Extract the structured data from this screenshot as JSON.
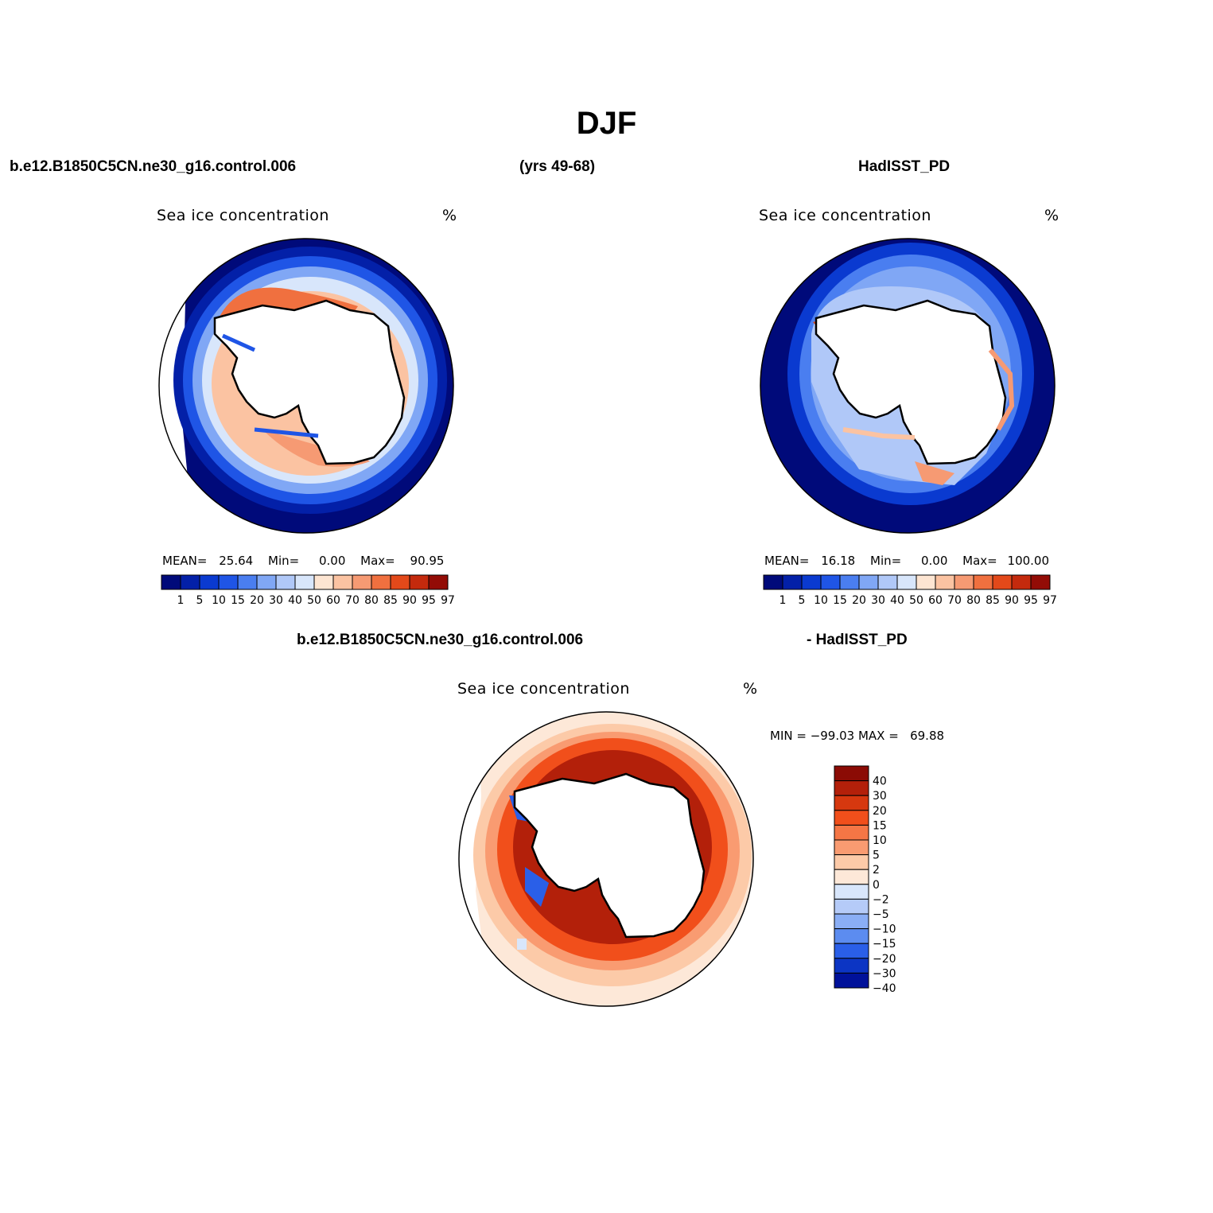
{
  "figure": {
    "title": "DJF",
    "case_name": "b.e12.B1850C5CN.ne30_g16.control.006",
    "years": "(yrs 49-68)",
    "obs_name": "HadISST_PD",
    "diff_case_name": "b.e12.B1850C5CN.ne30_g16.control.006",
    "diff_obs_name": "- HadISST_PD"
  },
  "panels": [
    {
      "id": "model",
      "variable": "Sea ice concentration",
      "units": "%",
      "mean_label": "MEAN=",
      "mean": "25.64",
      "min_label": "Min=",
      "min": "0.00",
      "max_label": "Max=",
      "max": "90.95"
    },
    {
      "id": "obs",
      "variable": "Sea ice concentration",
      "units": "%",
      "mean_label": "MEAN=",
      "mean": "16.18",
      "min_label": "Min=",
      "min": "0.00",
      "max_label": "Max=",
      "max": "100.00"
    },
    {
      "id": "diff",
      "variable": "Sea ice concentration",
      "units": "%",
      "minmax_text": "MIN = −99.03 MAX =   69.88"
    }
  ],
  "legends": {
    "abs": {
      "levels": [
        "1",
        "5",
        "10",
        "15",
        "20",
        "30",
        "40",
        "50",
        "60",
        "70",
        "80",
        "85",
        "90",
        "95",
        "97"
      ],
      "colors": [
        "#000a7a",
        "#0320a8",
        "#0a3ad0",
        "#1f55e6",
        "#4a7ef0",
        "#80a7f5",
        "#b0c8f8",
        "#d8e6fb",
        "#fde5d2",
        "#fbc3a2",
        "#f69a73",
        "#f0703f",
        "#e3491a",
        "#c42a0d",
        "#930c06"
      ]
    },
    "diff": {
      "levels": [
        "40",
        "30",
        "20",
        "15",
        "10",
        "5",
        "2",
        "0",
        "−2",
        "−5",
        "−10",
        "−15",
        "−20",
        "−30",
        "−40"
      ],
      "colors": [
        "#8b0b05",
        "#b3200a",
        "#d6380f",
        "#f14f1b",
        "#f57645",
        "#f99b71",
        "#fccaa8",
        "#fde8d8",
        "#d8e6fb",
        "#b5cbf8",
        "#8aaef5",
        "#5c8cf0",
        "#2a5fe8",
        "#0c35c4",
        "#00119a"
      ]
    }
  },
  "map_data": {
    "projection": "South polar stereographic",
    "features": [
      "Antarctica coastline",
      "Antarctic Peninsula"
    ],
    "model_description": "Ice ring around Antarctica; high concentrations (70-90%) in Weddell Sea and near coast; outer ring drops to 1%.",
    "obs_description": "Narrower ring; high concentrations (90-97%) in western Weddell Sea; elsewhere mostly below 50%.",
    "diff_description": "Positive bias (model > obs) of 20-40% in broad ring around continent; negative bias (-20 to -40%) in western Weddell Sea and along coasts."
  }
}
